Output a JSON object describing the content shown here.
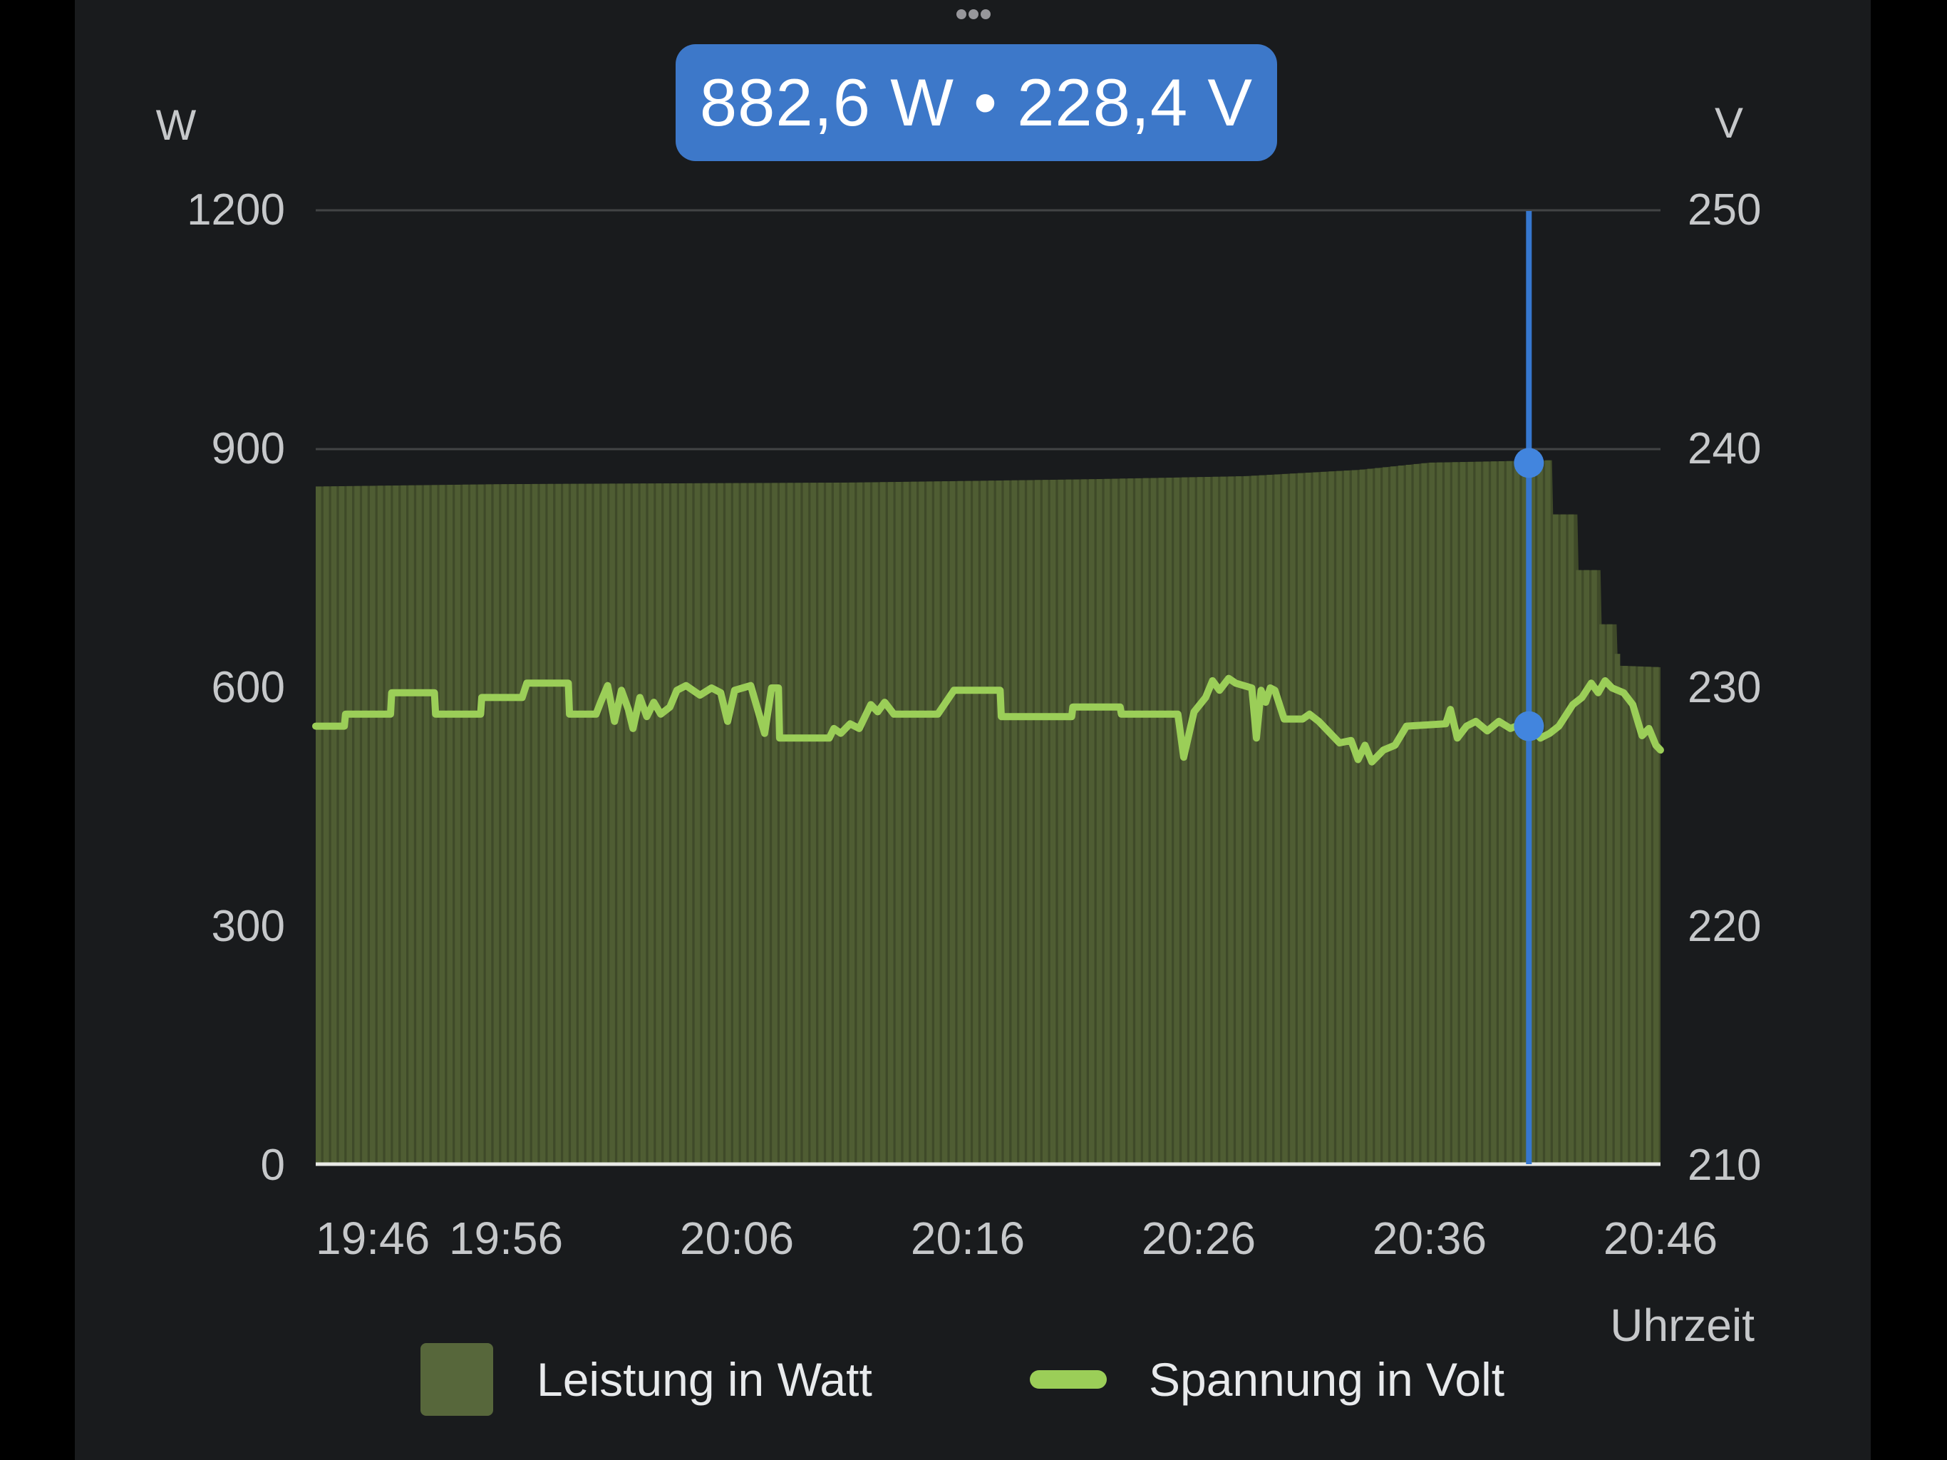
{
  "window": {
    "drag_handle_dots": 3
  },
  "tooltip": {
    "text": "882,6 W • 228,4 V",
    "bg": "#3d78c9",
    "text_color": "#ffffff"
  },
  "axes": {
    "left": {
      "unit": "W",
      "ticks": [
        "1200",
        "900",
        "600",
        "300",
        "0"
      ]
    },
    "right": {
      "unit": "V",
      "ticks": [
        "250",
        "240",
        "230",
        "220",
        "210"
      ]
    },
    "x": {
      "label": "Uhrzeit",
      "ticks": [
        "19:46",
        "19:56",
        "20:06",
        "20:16",
        "20:26",
        "20:36",
        "20:46"
      ]
    }
  },
  "legend": {
    "items": [
      {
        "label": "Leistung in Watt",
        "swatch": "square",
        "color": "#57673b"
      },
      {
        "label": "Spannung in Volt",
        "swatch": "line",
        "color": "#9bce58"
      }
    ]
  },
  "colors": {
    "panel_bg": "#191b1d",
    "letterbox": "#000000",
    "gridline": "rgba(255,255,255,0.18)",
    "baseline": "#e9eae6",
    "bar_fill": "#4f5d33",
    "bar_gap_fill": "#3f4a29",
    "voltage_line": "#9bce58",
    "cursor_line": "#3677cf",
    "cursor_dot": "#4285de",
    "axis_text": "#c6c8ca",
    "legend_text": "#e8eaec",
    "tooltip_bg": "#3d78c9"
  },
  "chart_data": {
    "type": "combo",
    "title": "",
    "x_axis": {
      "label": "Uhrzeit",
      "tick_labels": [
        "19:46",
        "19:56",
        "20:06",
        "20:16",
        "20:26",
        "20:36",
        "20:46"
      ],
      "tick_minutes_after_1946": [
        0,
        10,
        20,
        30,
        40,
        50,
        60
      ],
      "data_start_min": 1.76,
      "data_end_min": 60
    },
    "y_left": {
      "unit": "W",
      "series": "Leistung in Watt",
      "min": 0,
      "max": 1200,
      "tick_step": 300
    },
    "y_right": {
      "unit": "V",
      "series": "Spannung in Volt",
      "min": 210,
      "max": 250,
      "tick_step": 10
    },
    "grid": true,
    "legend_position": "bottom",
    "series": [
      {
        "name": "Leistung in Watt",
        "type": "bar",
        "axis": "left",
        "color": "#4f5d33",
        "points_min_watts": [
          [
            1.76,
            853
          ],
          [
            10,
            856
          ],
          [
            25,
            858
          ],
          [
            35,
            862
          ],
          [
            42,
            866
          ],
          [
            47,
            874
          ],
          [
            50,
            883
          ],
          [
            55.3,
            886
          ],
          [
            55.35,
            818
          ],
          [
            56.4,
            818
          ],
          [
            56.45,
            748
          ],
          [
            57.4,
            748
          ],
          [
            57.45,
            680
          ],
          [
            58.1,
            680
          ],
          [
            58.15,
            628
          ],
          [
            60,
            626
          ]
        ]
      },
      {
        "name": "Spannung in Volt",
        "type": "line",
        "axis": "right",
        "color": "#9bce58",
        "points_min_volts": [
          [
            1.76,
            228.4
          ],
          [
            3.0,
            228.4
          ],
          [
            3.05,
            228.9
          ],
          [
            5.0,
            228.9
          ],
          [
            5.05,
            229.8
          ],
          [
            6.9,
            229.8
          ],
          [
            6.95,
            228.9
          ],
          [
            8.9,
            228.9
          ],
          [
            8.95,
            229.6
          ],
          [
            10.7,
            229.6
          ],
          [
            10.9,
            230.2
          ],
          [
            12.7,
            230.2
          ],
          [
            12.75,
            228.9
          ],
          [
            13.9,
            228.9
          ],
          [
            14.1,
            229.4
          ],
          [
            14.4,
            230.1
          ],
          [
            14.7,
            228.6
          ],
          [
            15.0,
            229.9
          ],
          [
            15.3,
            229.1
          ],
          [
            15.5,
            228.3
          ],
          [
            15.8,
            229.6
          ],
          [
            16.1,
            228.8
          ],
          [
            16.4,
            229.4
          ],
          [
            16.7,
            228.9
          ],
          [
            17.1,
            229.2
          ],
          [
            17.4,
            229.9
          ],
          [
            17.8,
            230.1
          ],
          [
            18.4,
            229.7
          ],
          [
            18.9,
            230.0
          ],
          [
            19.3,
            229.8
          ],
          [
            19.6,
            228.6
          ],
          [
            19.9,
            229.9
          ],
          [
            20.6,
            230.1
          ],
          [
            21.2,
            228.1
          ],
          [
            21.5,
            230.0
          ],
          [
            21.8,
            230.0
          ],
          [
            21.85,
            227.9
          ],
          [
            24.0,
            227.9
          ],
          [
            24.2,
            228.3
          ],
          [
            24.5,
            228.1
          ],
          [
            24.9,
            228.5
          ],
          [
            25.3,
            228.3
          ],
          [
            25.8,
            229.3
          ],
          [
            26.1,
            229.0
          ],
          [
            26.4,
            229.4
          ],
          [
            26.8,
            228.9
          ],
          [
            28.7,
            228.9
          ],
          [
            29.4,
            229.9
          ],
          [
            31.4,
            229.9
          ],
          [
            31.45,
            228.8
          ],
          [
            34.5,
            228.8
          ],
          [
            34.55,
            229.2
          ],
          [
            36.6,
            229.2
          ],
          [
            36.65,
            228.9
          ],
          [
            39.1,
            228.9
          ],
          [
            39.35,
            227.1
          ],
          [
            39.8,
            229.0
          ],
          [
            40.3,
            229.6
          ],
          [
            40.6,
            230.3
          ],
          [
            40.9,
            229.9
          ],
          [
            41.3,
            230.4
          ],
          [
            41.6,
            230.2
          ],
          [
            42.3,
            230.0
          ],
          [
            42.5,
            227.9
          ],
          [
            42.7,
            229.9
          ],
          [
            42.9,
            229.4
          ],
          [
            43.1,
            230.0
          ],
          [
            43.3,
            229.9
          ],
          [
            43.7,
            228.7
          ],
          [
            44.5,
            228.7
          ],
          [
            44.8,
            228.9
          ],
          [
            45.2,
            228.6
          ],
          [
            46.1,
            227.7
          ],
          [
            46.6,
            227.8
          ],
          [
            46.9,
            227.0
          ],
          [
            47.2,
            227.6
          ],
          [
            47.5,
            226.9
          ],
          [
            48.0,
            227.4
          ],
          [
            48.5,
            227.6
          ],
          [
            49.0,
            228.4
          ],
          [
            50.7,
            228.5
          ],
          [
            50.9,
            229.1
          ],
          [
            51.2,
            227.9
          ],
          [
            51.6,
            228.4
          ],
          [
            52.0,
            228.6
          ],
          [
            52.5,
            228.2
          ],
          [
            53.0,
            228.6
          ],
          [
            53.5,
            228.3
          ],
          [
            54.0,
            228.5
          ],
          [
            54.3,
            228.4
          ],
          [
            54.8,
            227.9
          ],
          [
            55.2,
            228.1
          ],
          [
            55.6,
            228.4
          ],
          [
            56.2,
            229.3
          ],
          [
            56.6,
            229.6
          ],
          [
            57.0,
            230.2
          ],
          [
            57.3,
            229.8
          ],
          [
            57.6,
            230.3
          ],
          [
            57.9,
            230.0
          ],
          [
            58.4,
            229.8
          ],
          [
            58.8,
            229.3
          ],
          [
            59.2,
            228.0
          ],
          [
            59.5,
            228.3
          ],
          [
            59.8,
            227.6
          ],
          [
            60.0,
            227.4
          ]
        ]
      }
    ],
    "cursor": {
      "time_min_after_1946": 54.3,
      "power_w": 882.6,
      "voltage_v": 228.4,
      "label": "882,6 W • 228,4 V"
    }
  }
}
